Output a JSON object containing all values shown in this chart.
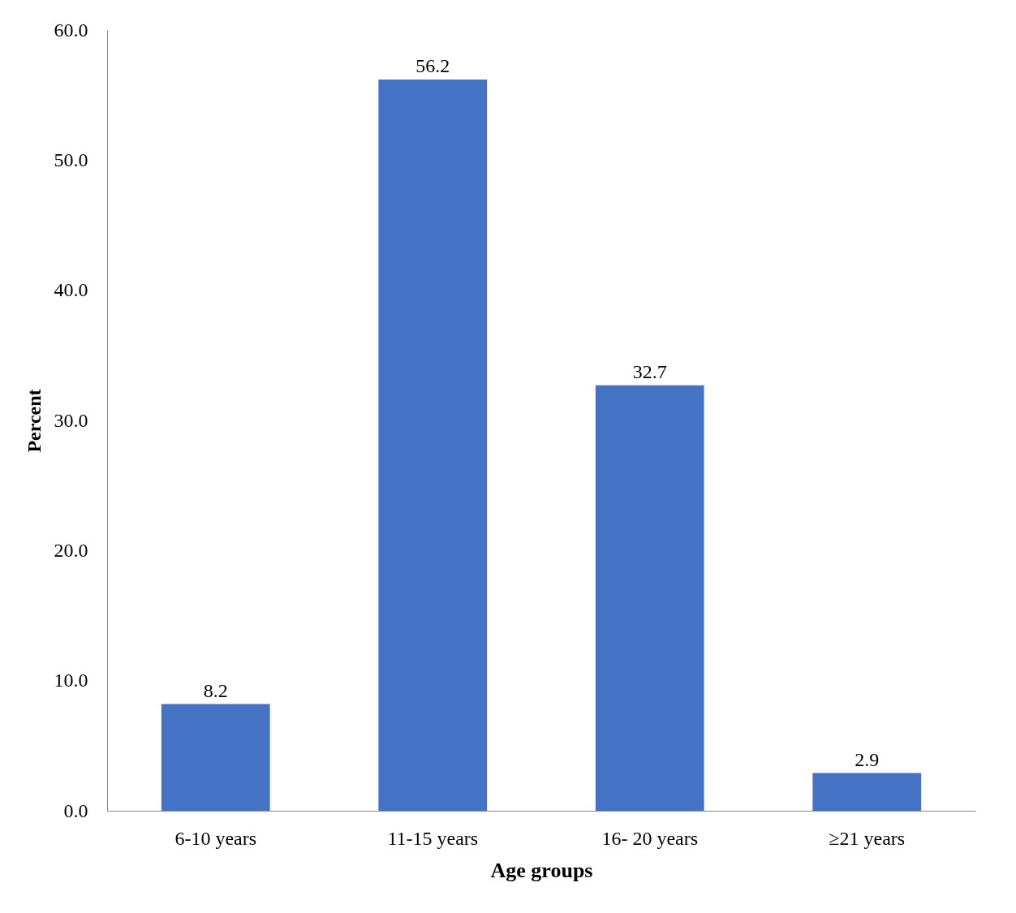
{
  "chart_data": {
    "type": "bar",
    "xlabel": "Age groups",
    "ylabel": "Percent",
    "categories": [
      "6-10 years",
      "11-15 years",
      "16- 20 years",
      "≥21 years"
    ],
    "values": [
      8.2,
      56.2,
      32.7,
      2.9
    ],
    "color": "#4472c4",
    "ylim": [
      0,
      60
    ],
    "yticks": [
      {
        "value": 0,
        "label": "0.0"
      },
      {
        "value": 10,
        "label": "10.0"
      },
      {
        "value": 20,
        "label": "20.0"
      },
      {
        "value": 30,
        "label": "30.0"
      },
      {
        "value": 40,
        "label": "40.0"
      },
      {
        "value": 50,
        "label": "50.0"
      },
      {
        "value": 60,
        "label": "60.0"
      }
    ],
    "grid": false,
    "data_labels": true
  }
}
